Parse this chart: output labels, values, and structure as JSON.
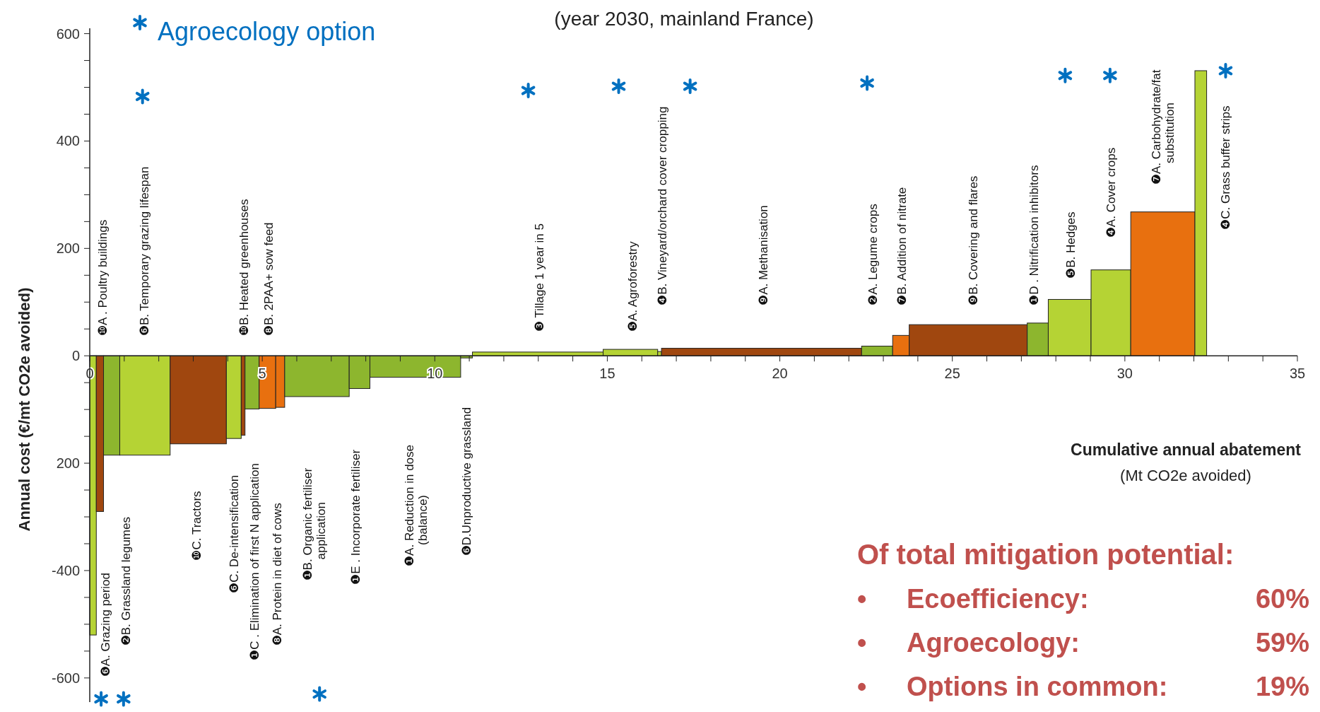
{
  "chart_data": {
    "type": "histogram",
    "subtitle": "(year 2030, mainland France)",
    "xlabel": "Cumulative annual abatement\n(Mt CO2e avoided)",
    "ylabel": "Annual cost (€/mt CO2e avoided)",
    "bins": [
      0,
      0.19,
      0.4,
      0.87,
      2.33,
      3.96,
      4.39,
      4.5,
      4.91,
      5.39,
      5.65,
      7.52,
      8.12,
      10.75,
      11.09,
      14.88,
      16.46,
      16.57,
      22.37,
      23.27,
      23.75,
      27.17,
      27.78,
      29.02,
      30.17,
      32.03,
      32.37
    ],
    "values": [
      -520,
      -290,
      -185,
      -185,
      -164,
      -154,
      -148,
      -99,
      -98,
      -96,
      -76,
      -61,
      -40,
      -4,
      7,
      12,
      8,
      14,
      18,
      38,
      58,
      61,
      105,
      160,
      268,
      531
    ],
    "colors": [
      "#b5d334",
      "#a0470f",
      "#8db62e",
      "#b5d334",
      "#a0470f",
      "#b5d334",
      "#a0470f",
      "#8db62e",
      "#e8700f",
      "#e8700f",
      "#8db62e",
      "#8db62e",
      "#8db62e",
      "#8db62e",
      "#b5d334",
      "#b5d334",
      "#b5d334",
      "#a0470f",
      "#8db62e",
      "#e8700f",
      "#a0470f",
      "#8db62e",
      "#b5d334",
      "#b5d334",
      "#e8700f",
      "#b5d334"
    ],
    "series": [
      {
        "name": "Agroecology option",
        "type": "scatter",
        "color": "#0070c0",
        "x": [
          1.53,
          12.71,
          15.33,
          17.4,
          22.53,
          28.27,
          29.57,
          32.92,
          0.33,
          0.98,
          6.66
        ],
        "values": [
          483,
          494,
          502,
          502,
          508,
          522,
          522,
          531,
          -639,
          -639,
          -630
        ]
      }
    ],
    "marker": "cross",
    "legend": "top left",
    "grid": false,
    "xlim": [
      0,
      35
    ],
    "xticks": [
      0,
      {
        "value": 1,
        "label": null
      },
      {
        "value": 2,
        "label": null
      },
      {
        "value": 3,
        "label": null
      },
      {
        "value": 4,
        "label": null
      },
      5,
      {
        "value": 6,
        "label": null
      },
      {
        "value": 7,
        "label": null
      },
      {
        "value": 8,
        "label": null
      },
      {
        "value": 9,
        "label": null
      },
      10,
      {
        "value": 11,
        "label": null
      },
      {
        "value": 12,
        "label": null
      },
      {
        "value": 13,
        "label": null
      },
      {
        "value": 14,
        "label": null
      },
      15,
      {
        "value": 16,
        "label": null
      },
      {
        "value": 17,
        "label": null
      },
      {
        "value": 18,
        "label": null
      },
      {
        "value": 19,
        "label": null
      },
      20,
      {
        "value": 21,
        "label": null
      },
      {
        "value": 22,
        "label": null
      },
      {
        "value": 23,
        "label": null
      },
      {
        "value": 24,
        "label": null
      },
      25,
      {
        "value": 26,
        "label": null
      },
      {
        "value": 27,
        "label": null
      },
      {
        "value": 28,
        "label": null
      },
      {
        "value": 29,
        "label": null
      },
      30,
      {
        "value": 31,
        "label": null
      },
      {
        "value": 32,
        "label": null
      },
      {
        "value": 33,
        "label": null
      },
      {
        "value": 34,
        "label": null
      },
      35
    ],
    "ylim": [
      -645,
      610
    ],
    "yticks": [
      -600,
      {
        "value": -550,
        "label": null
      },
      {
        "value": -500,
        "label": null
      },
      {
        "value": -450,
        "label": null
      },
      -400,
      {
        "value": -350,
        "label": null
      },
      {
        "value": -300,
        "label": null
      },
      {
        "value": -250,
        "label": null
      },
      {
        "value": -200,
        "label": "200"
      },
      {
        "value": -150,
        "label": null
      },
      {
        "value": -100,
        "label": null
      },
      {
        "value": -50,
        "label": null
      },
      0,
      {
        "value": 50,
        "label": null
      },
      {
        "value": 100,
        "label": null
      },
      {
        "value": 150,
        "label": null
      },
      200,
      {
        "value": 250,
        "label": null
      },
      {
        "value": 300,
        "label": null
      },
      {
        "value": 350,
        "label": null
      },
      400,
      {
        "value": 450,
        "label": null
      },
      {
        "value": 500,
        "label": null
      },
      {
        "value": 550,
        "label": null
      },
      600
    ],
    "annotations": [
      "❿A . Poultry buildings",
      "❻B. Temporary grazing lifespan",
      "❿B. Heated greenhouses",
      "❽B. 2PAA+ sow feed",
      "❸ Tillage 1 year in 5",
      "❺A. Agroforestry",
      "❹B. Vineyard/orchard cover cropping",
      "❾A. Methanisation",
      "❷A. Legume crops",
      "❼B. Addition of nitrate",
      "❾B. Covering and flares",
      "❶D . Nitrification inhibitors",
      "❺B. Hedges",
      "❹A. Cover crops",
      "❼A. Carbohydrate/fat\nsubstitution",
      "❹C. Grass buffer strips",
      "❻A. Grazing period",
      "❷B. Grassland legumes",
      "❿C. Tractors",
      "❻C. De-intensification",
      "❶C . Elimination of first N application",
      "❽A. Protein in diet of cows",
      "❶B. Organic fertiliser\napplication",
      "❶E . Incorporate fertiliser",
      "❶A. Reduction in dose\n(balance)",
      "❻D.Unproductive grassland",
      "Of total mitigation potential:",
      "• Ecoefficiency: 60%",
      "• Agroecology: 59%",
      "• Options in common: 19%"
    ]
  }
}
